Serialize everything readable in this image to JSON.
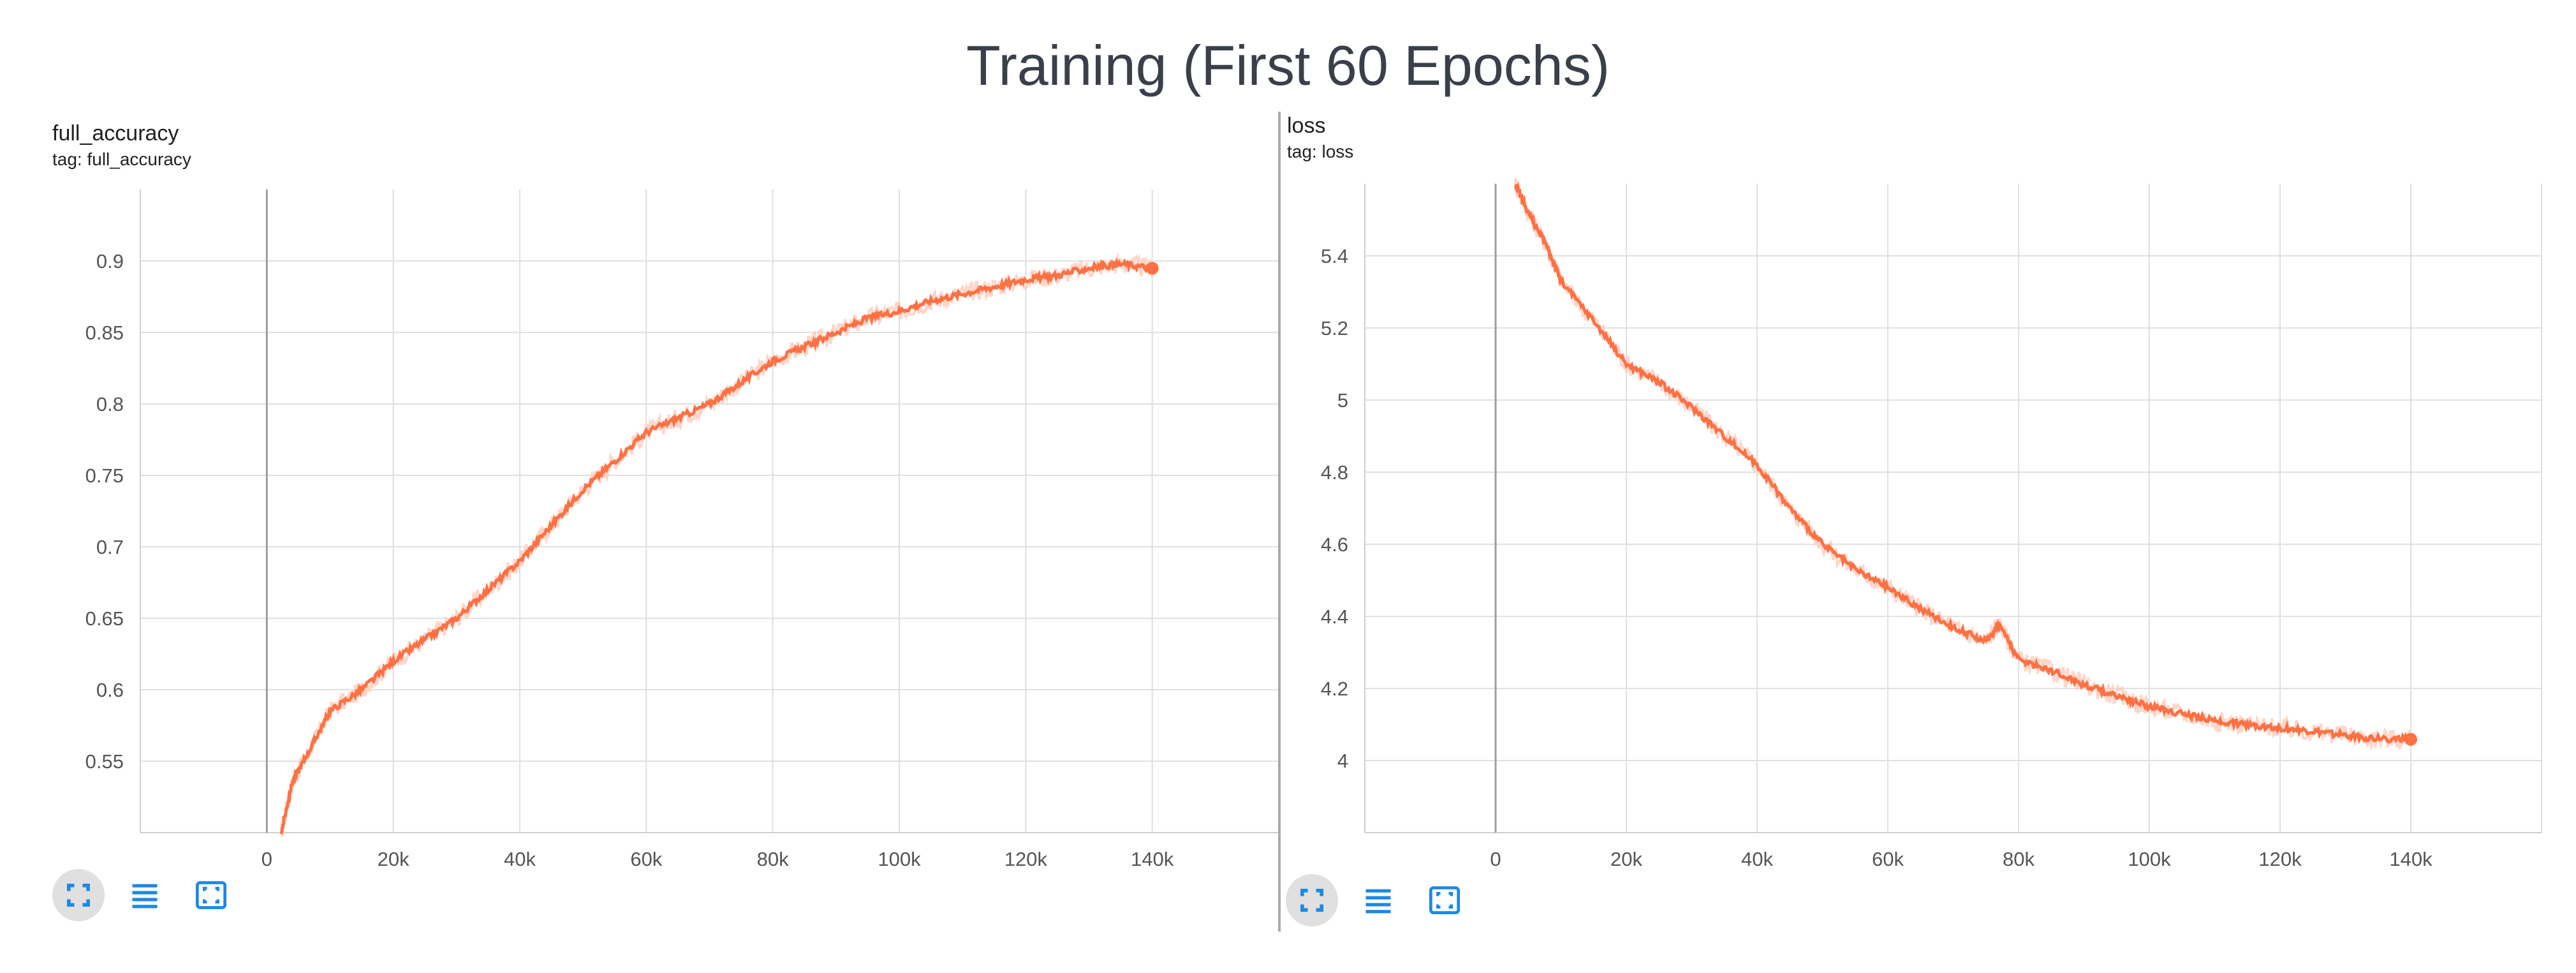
{
  "page_title": "Training (First 60 Epochs)",
  "colors": {
    "accent": "#ff7043",
    "accent_light": "#ffccbc",
    "icon": "#1e88e5",
    "grid": "#e0e0e0"
  },
  "toolbar_icons": [
    "fullscreen-icon",
    "list-icon",
    "fit-domain-icon"
  ],
  "charts": [
    {
      "title": "full_accuracy",
      "tag": "tag: full_accuracy"
    },
    {
      "title": "loss",
      "tag": "tag: loss"
    }
  ],
  "chart_data": [
    {
      "type": "line",
      "title": "full_accuracy",
      "subtitle": "tag: full_accuracy",
      "xlabel": "",
      "ylabel": "",
      "xlim": [
        -20000,
        160000
      ],
      "ylim": [
        0.5,
        0.95
      ],
      "x_ticks": [
        0,
        20000,
        40000,
        60000,
        80000,
        100000,
        120000,
        140000
      ],
      "x_tick_labels": [
        "0",
        "20k",
        "40k",
        "60k",
        "80k",
        "100k",
        "120k",
        "140k"
      ],
      "y_ticks": [
        0.55,
        0.6,
        0.65,
        0.7,
        0.75,
        0.8,
        0.85,
        0.9
      ],
      "y_tick_labels": [
        "0.55",
        "0.6",
        "0.65",
        "0.7",
        "0.75",
        "0.8",
        "0.85",
        "0.9"
      ],
      "grid": true,
      "series": [
        {
          "x": [
            2300,
            4000,
            7000,
            10000,
            15000,
            20000,
            25000,
            30000,
            35000,
            40000,
            45000,
            50000,
            55000,
            60000,
            65000,
            70000,
            75000,
            80000,
            85000,
            90000,
            95000,
            100000,
            105000,
            110000,
            115000,
            120000,
            125000,
            130000,
            135000,
            140000
          ],
          "y": [
            0.5,
            0.535,
            0.56,
            0.585,
            0.6,
            0.62,
            0.635,
            0.65,
            0.67,
            0.69,
            0.715,
            0.74,
            0.76,
            0.78,
            0.79,
            0.8,
            0.815,
            0.83,
            0.84,
            0.85,
            0.86,
            0.865,
            0.872,
            0.877,
            0.882,
            0.887,
            0.89,
            0.895,
            0.898,
            0.895
          ]
        }
      ]
    },
    {
      "type": "line",
      "title": "loss",
      "subtitle": "tag: loss",
      "xlabel": "",
      "ylabel": "",
      "xlim": [
        -20000,
        160000
      ],
      "ylim": [
        3.8,
        5.6
      ],
      "x_ticks": [
        0,
        20000,
        40000,
        60000,
        80000,
        100000,
        120000,
        140000
      ],
      "x_tick_labels": [
        "0",
        "20k",
        "40k",
        "60k",
        "80k",
        "100k",
        "120k",
        "140k"
      ],
      "y_ticks": [
        4.0,
        4.2,
        4.4,
        4.6,
        4.8,
        5.0,
        5.2,
        5.4
      ],
      "y_tick_labels": [
        "4",
        "4.2",
        "4.4",
        "4.6",
        "4.8",
        "5",
        "5.2",
        "5.4"
      ],
      "grid": true,
      "series": [
        {
          "x": [
            3000,
            5000,
            8000,
            10000,
            15000,
            20000,
            25000,
            30000,
            35000,
            40000,
            45000,
            50000,
            55000,
            60000,
            65000,
            70000,
            75000,
            77000,
            80000,
            85000,
            90000,
            95000,
            100000,
            105000,
            110000,
            115000,
            120000,
            125000,
            130000,
            135000,
            140000
          ],
          "y": [
            5.6,
            5.52,
            5.42,
            5.33,
            5.22,
            5.1,
            5.05,
            4.98,
            4.9,
            4.82,
            4.7,
            4.6,
            4.53,
            4.48,
            4.42,
            4.37,
            4.33,
            4.38,
            4.28,
            4.25,
            4.21,
            4.18,
            4.15,
            4.13,
            4.11,
            4.1,
            4.09,
            4.08,
            4.07,
            4.06,
            4.06
          ]
        }
      ]
    }
  ]
}
